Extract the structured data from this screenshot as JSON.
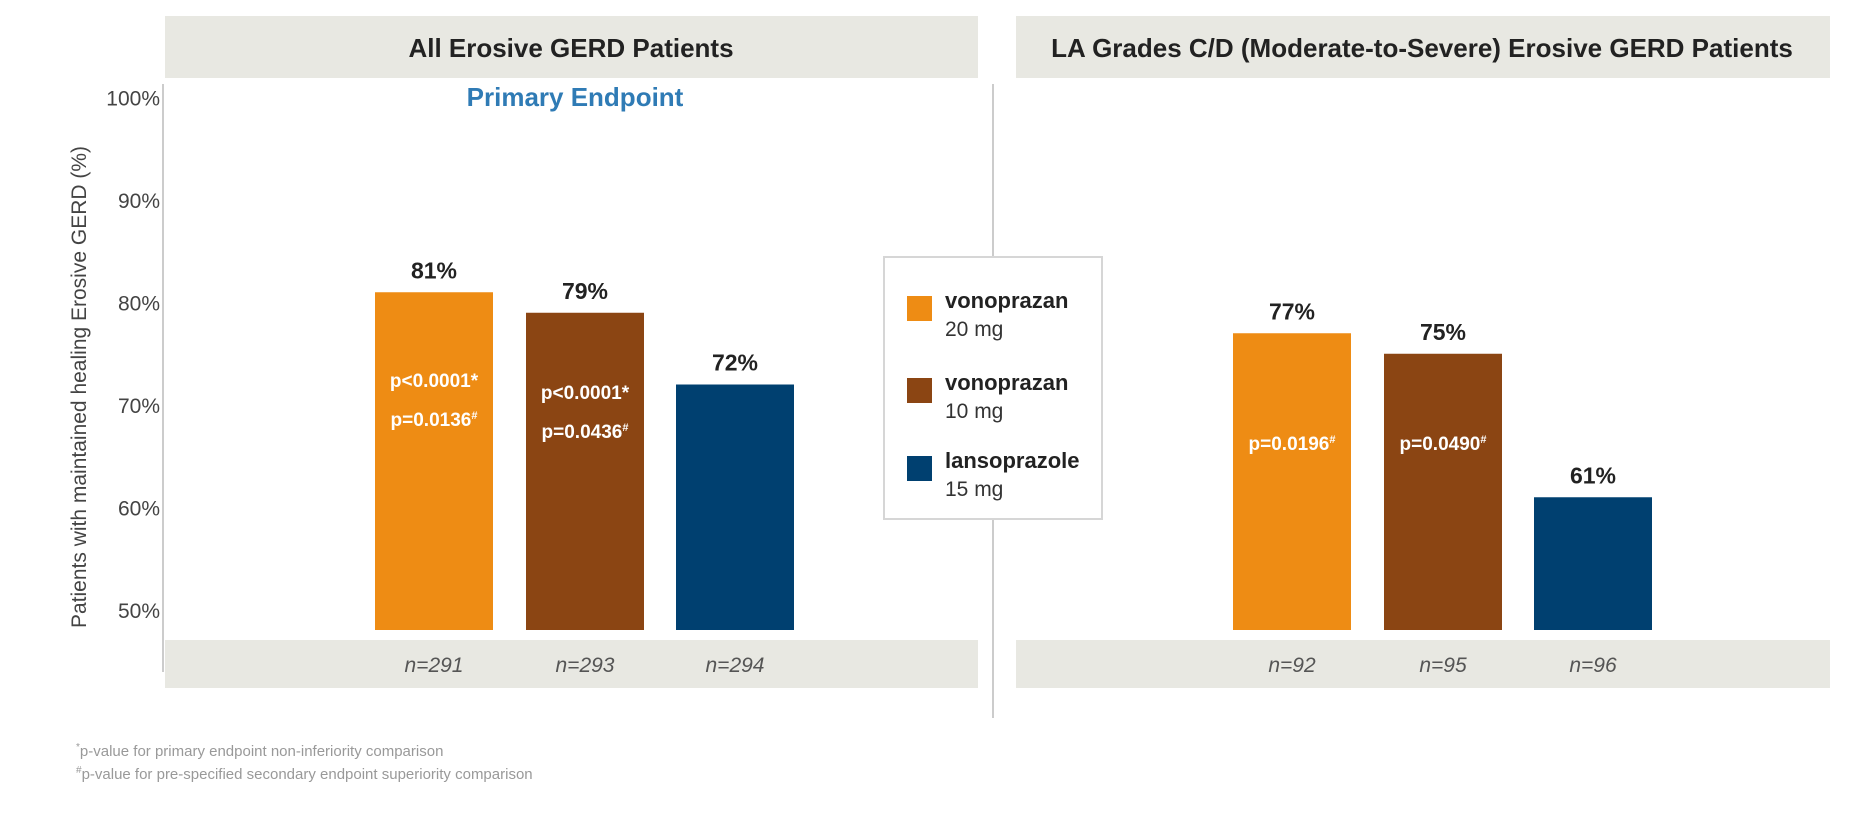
{
  "chart_data": [
    {
      "type": "bar",
      "title": "All Erosive GERD Patients",
      "subtitle": "Primary Endpoint",
      "ylabel": "Patients with maintained healing Erosive GERD (%)",
      "ylim": [
        48,
        100
      ],
      "yticks": [
        50,
        60,
        70,
        80,
        90,
        100
      ],
      "ytick_labels": [
        "50%",
        "60%",
        "70%",
        "80%",
        "90%",
        "100%"
      ],
      "categories": [
        "vonoprazan 20 mg",
        "vonoprazan 10 mg",
        "lansoprazole 15 mg"
      ],
      "values": [
        81,
        79,
        72
      ],
      "value_labels": [
        "81%",
        "79%",
        "72%"
      ],
      "n_labels": [
        "n=291",
        "n=293",
        "n=294"
      ],
      "pvalue_lines": [
        [
          "p<0.0001*",
          "p=0.0136#"
        ],
        [
          "p<0.0001*",
          "p=0.0436#"
        ],
        []
      ]
    },
    {
      "type": "bar",
      "title": "LA Grades C/D (Moderate-to-Severe) Erosive GERD Patients",
      "ylim": [
        48,
        100
      ],
      "categories": [
        "vonoprazan 20 mg",
        "vonoprazan 10 mg",
        "lansoprazole 15 mg"
      ],
      "values": [
        77,
        75,
        61
      ],
      "value_labels": [
        "77%",
        "75%",
        "61%"
      ],
      "n_labels": [
        "n=92",
        "n=95",
        "n=96"
      ],
      "pvalue_lines": [
        [
          "p=0.0196#"
        ],
        [
          "p=0.0490#"
        ],
        []
      ]
    }
  ],
  "legend": [
    {
      "name": "vonoprazan",
      "dose": "20 mg",
      "color": "#EE8C14"
    },
    {
      "name": "vonoprazan",
      "dose": "10 mg",
      "color": "#8B4513"
    },
    {
      "name": "lansoprazole",
      "dose": "15 mg",
      "color": "#004070"
    }
  ],
  "colors": {
    "panel_bg": "#E8E8E2",
    "subtitle": "#2F7BB5",
    "axis": "#cccccc"
  },
  "footnotes": [
    {
      "mark": "*",
      "text": "p-value for primary endpoint non-inferiority comparison"
    },
    {
      "mark": "#",
      "text": "p-value for pre-specified secondary endpoint superiority comparison"
    }
  ]
}
